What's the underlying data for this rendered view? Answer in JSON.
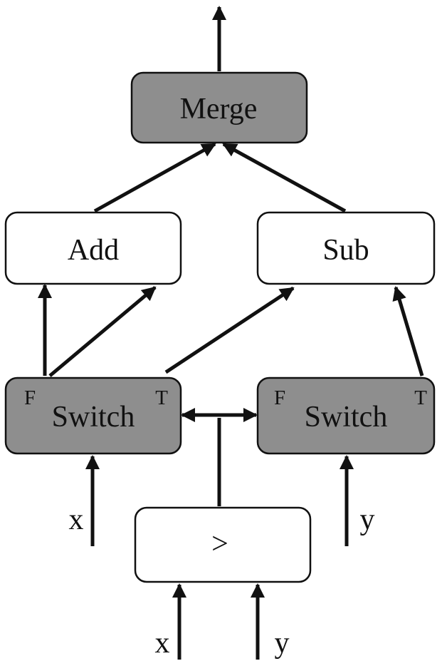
{
  "diagram": {
    "colors": {
      "control_node_fill": "#8e8e8e",
      "op_node_fill": "#ffffff",
      "stroke": "#111111"
    },
    "nodes": {
      "merge": {
        "label": "Merge"
      },
      "add": {
        "label": "Add"
      },
      "sub": {
        "label": "Sub"
      },
      "switch_left": {
        "label": "Switch",
        "false_port": "F",
        "true_port": "T"
      },
      "switch_right": {
        "label": "Switch",
        "false_port": "F",
        "true_port": "T"
      },
      "greater": {
        "label": ">"
      }
    },
    "inputs": {
      "switch_left_x": "x",
      "switch_right_y": "y",
      "greater_x": "x",
      "greater_y": "y"
    }
  }
}
